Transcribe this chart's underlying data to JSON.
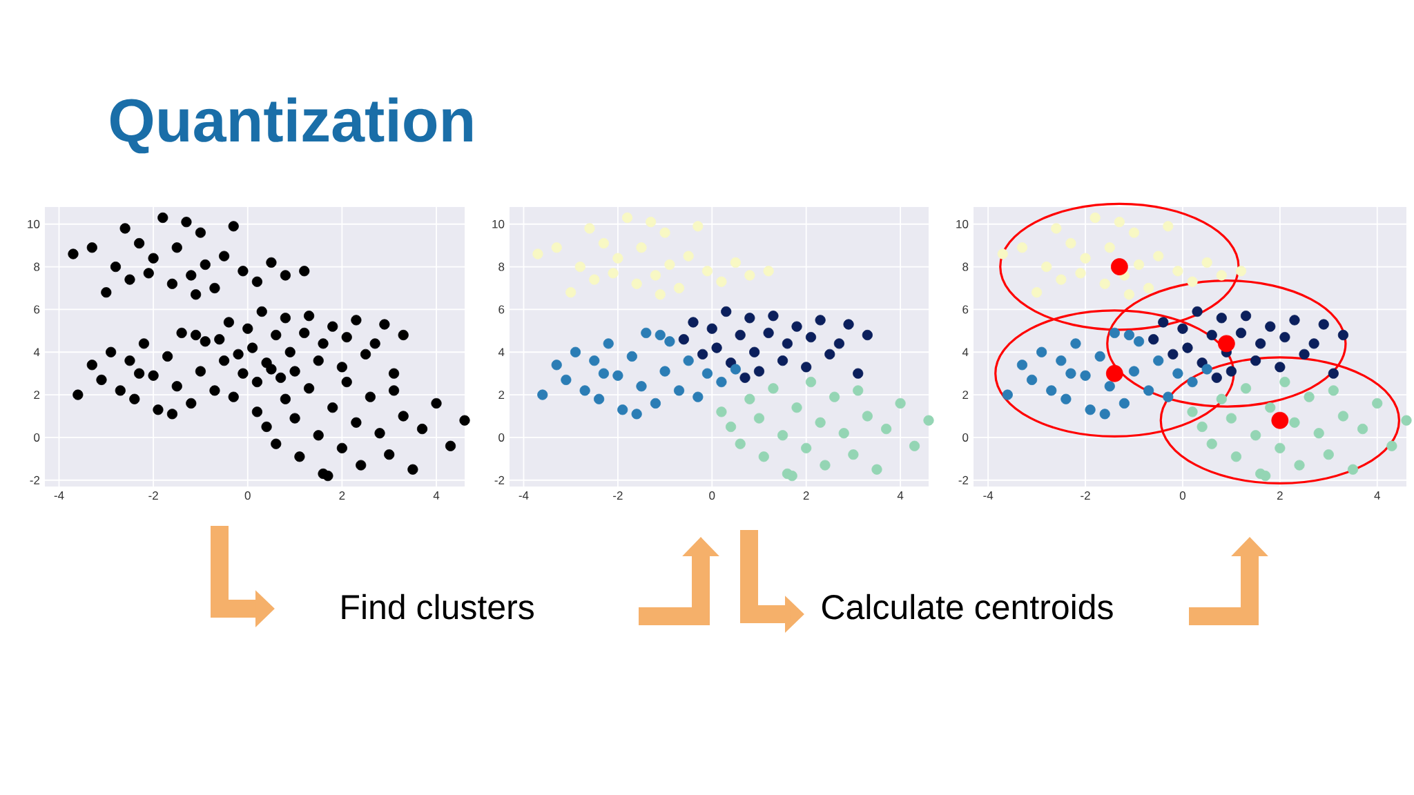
{
  "chart_data": [
    {
      "type": "scatter",
      "title": "Quantization",
      "annotations": [
        "Find clusters"
      ],
      "xlim": [
        -4.3,
        4.6
      ],
      "ylim": [
        -2.3,
        10.8
      ],
      "xticks": [
        -4,
        -2,
        0,
        2,
        4
      ],
      "yticks": [
        -2,
        0,
        2,
        4,
        6,
        8,
        10
      ],
      "grid": true,
      "marker": "circle",
      "series": [
        {
          "color": "#000000",
          "x": [
            -3.7,
            -3.3,
            -3.0,
            -2.8,
            -2.5,
            -2.3,
            -2.1,
            -2.0,
            -1.8,
            -1.6,
            -1.5,
            -1.3,
            -1.2,
            -1.0,
            -0.9,
            -0.7,
            -0.5,
            -0.3,
            -0.1,
            0.2,
            0.5,
            0.8,
            1.2,
            -1.1,
            -2.6,
            -0.6,
            -0.4,
            -0.2,
            0.0,
            0.1,
            0.3,
            0.4,
            0.6,
            0.8,
            0.9,
            1.0,
            1.2,
            1.3,
            1.5,
            1.6,
            1.8,
            2.0,
            2.1,
            2.3,
            2.5,
            2.7,
            2.9,
            3.1,
            3.3,
            0.7,
            -3.6,
            -3.3,
            -3.1,
            -2.9,
            -2.7,
            -2.5,
            -2.4,
            -2.2,
            -2.0,
            -1.9,
            -1.7,
            -1.5,
            -1.4,
            -1.2,
            -1.0,
            -0.9,
            -0.7,
            -0.5,
            -0.3,
            -0.1,
            0.2,
            0.5,
            -1.6,
            -2.3,
            -1.1,
            0.2,
            0.4,
            0.6,
            0.8,
            1.0,
            1.1,
            1.3,
            1.5,
            1.6,
            1.8,
            2.0,
            2.1,
            2.3,
            2.4,
            2.6,
            2.8,
            3.0,
            3.1,
            3.3,
            3.5,
            3.7,
            4.0,
            4.3,
            4.6,
            1.7
          ],
          "values": [
            8.6,
            8.9,
            6.8,
            8.0,
            7.4,
            9.1,
            7.7,
            8.4,
            10.3,
            7.2,
            8.9,
            10.1,
            7.6,
            9.6,
            8.1,
            7.0,
            8.5,
            9.9,
            7.8,
            7.3,
            8.2,
            7.6,
            7.8,
            6.7,
            9.8,
            4.6,
            5.4,
            3.9,
            5.1,
            4.2,
            5.9,
            3.5,
            4.8,
            5.6,
            4.0,
            3.1,
            4.9,
            5.7,
            3.6,
            4.4,
            5.2,
            3.3,
            4.7,
            5.5,
            3.9,
            4.4,
            5.3,
            3.0,
            4.8,
            2.8,
            2.0,
            3.4,
            2.7,
            4.0,
            2.2,
            3.6,
            1.8,
            4.4,
            2.9,
            1.3,
            3.8,
            2.4,
            4.9,
            1.6,
            3.1,
            4.5,
            2.2,
            3.6,
            1.9,
            3.0,
            2.6,
            3.2,
            1.1,
            3.0,
            4.8,
            1.2,
            0.5,
            -0.3,
            1.8,
            0.9,
            -0.9,
            2.3,
            0.1,
            -1.7,
            1.4,
            -0.5,
            2.6,
            0.7,
            -1.3,
            1.9,
            0.2,
            -0.8,
            2.2,
            1.0,
            -1.5,
            0.4,
            1.6,
            -0.4,
            0.8,
            -1.8
          ]
        }
      ]
    },
    {
      "type": "scatter",
      "annotations": [
        "Calculate centroids"
      ],
      "xlim": [
        -4.3,
        4.6
      ],
      "ylim": [
        -2.3,
        10.8
      ],
      "xticks": [
        -4,
        -2,
        0,
        2,
        4
      ],
      "yticks": [
        -2,
        0,
        2,
        4,
        6,
        8,
        10
      ],
      "grid": true,
      "marker": "circle",
      "series": [
        {
          "color": "#f8f8c4",
          "x": [
            -3.7,
            -3.3,
            -3.0,
            -2.8,
            -2.5,
            -2.3,
            -2.1,
            -2.0,
            -1.8,
            -1.6,
            -1.5,
            -1.3,
            -1.2,
            -1.0,
            -0.9,
            -0.7,
            -0.5,
            -0.3,
            -0.1,
            0.2,
            0.5,
            0.8,
            1.2,
            -1.1,
            -2.6
          ],
          "values": [
            8.6,
            8.9,
            6.8,
            8.0,
            7.4,
            9.1,
            7.7,
            8.4,
            10.3,
            7.2,
            8.9,
            10.1,
            7.6,
            9.6,
            8.1,
            7.0,
            8.5,
            9.9,
            7.8,
            7.3,
            8.2,
            7.6,
            7.8,
            6.7,
            9.8
          ]
        },
        {
          "color": "#0b1f5c",
          "x": [
            -0.6,
            -0.4,
            -0.2,
            0.0,
            0.1,
            0.3,
            0.4,
            0.6,
            0.8,
            0.9,
            1.0,
            1.2,
            1.3,
            1.5,
            1.6,
            1.8,
            2.0,
            2.1,
            2.3,
            2.5,
            2.7,
            2.9,
            3.1,
            3.3,
            0.7
          ],
          "values": [
            4.6,
            5.4,
            3.9,
            5.1,
            4.2,
            5.9,
            3.5,
            4.8,
            5.6,
            4.0,
            3.1,
            4.9,
            5.7,
            3.6,
            4.4,
            5.2,
            3.3,
            4.7,
            5.5,
            3.9,
            4.4,
            5.3,
            3.0,
            4.8,
            2.8
          ]
        },
        {
          "color": "#2b7db5",
          "x": [
            -3.6,
            -3.3,
            -3.1,
            -2.9,
            -2.7,
            -2.5,
            -2.4,
            -2.2,
            -2.0,
            -1.9,
            -1.7,
            -1.5,
            -1.4,
            -1.2,
            -1.0,
            -0.9,
            -0.7,
            -0.5,
            -0.3,
            -0.1,
            0.2,
            0.5,
            -1.6,
            -2.3,
            -1.1
          ],
          "values": [
            2.0,
            3.4,
            2.7,
            4.0,
            2.2,
            3.6,
            1.8,
            4.4,
            2.9,
            1.3,
            3.8,
            2.4,
            4.9,
            1.6,
            3.1,
            4.5,
            2.2,
            3.6,
            1.9,
            3.0,
            2.6,
            3.2,
            1.1,
            3.0,
            4.8
          ]
        },
        {
          "color": "#94d5b4",
          "x": [
            0.2,
            0.4,
            0.6,
            0.8,
            1.0,
            1.1,
            1.3,
            1.5,
            1.6,
            1.8,
            2.0,
            2.1,
            2.3,
            2.4,
            2.6,
            2.8,
            3.0,
            3.1,
            3.3,
            3.5,
            3.7,
            4.0,
            4.3,
            4.6,
            1.7
          ],
          "values": [
            1.2,
            0.5,
            -0.3,
            1.8,
            0.9,
            -0.9,
            2.3,
            0.1,
            -1.7,
            1.4,
            -0.5,
            2.6,
            0.7,
            -1.3,
            1.9,
            0.2,
            -0.8,
            2.2,
            1.0,
            -1.5,
            0.4,
            1.6,
            -0.4,
            0.8,
            -1.8
          ]
        }
      ]
    },
    {
      "type": "scatter",
      "xlim": [
        -4.3,
        4.6
      ],
      "ylim": [
        -2.3,
        10.8
      ],
      "xticks": [
        -4,
        -2,
        0,
        2,
        4
      ],
      "yticks": [
        -2,
        0,
        2,
        4,
        6,
        8,
        10
      ],
      "grid": true,
      "marker": "circle",
      "series": [
        {
          "color": "#f8f8c4",
          "x": [
            -3.7,
            -3.3,
            -3.0,
            -2.8,
            -2.5,
            -2.3,
            -2.1,
            -2.0,
            -1.8,
            -1.6,
            -1.5,
            -1.3,
            -1.2,
            -1.0,
            -0.9,
            -0.7,
            -0.5,
            -0.3,
            -0.1,
            0.2,
            0.5,
            0.8,
            1.2,
            -1.1,
            -2.6
          ],
          "values": [
            8.6,
            8.9,
            6.8,
            8.0,
            7.4,
            9.1,
            7.7,
            8.4,
            10.3,
            7.2,
            8.9,
            10.1,
            7.6,
            9.6,
            8.1,
            7.0,
            8.5,
            9.9,
            7.8,
            7.3,
            8.2,
            7.6,
            7.8,
            6.7,
            9.8
          ]
        },
        {
          "color": "#0b1f5c",
          "x": [
            -0.6,
            -0.4,
            -0.2,
            0.0,
            0.1,
            0.3,
            0.4,
            0.6,
            0.8,
            0.9,
            1.0,
            1.2,
            1.3,
            1.5,
            1.6,
            1.8,
            2.0,
            2.1,
            2.3,
            2.5,
            2.7,
            2.9,
            3.1,
            3.3,
            0.7
          ],
          "values": [
            4.6,
            5.4,
            3.9,
            5.1,
            4.2,
            5.9,
            3.5,
            4.8,
            5.6,
            4.0,
            3.1,
            4.9,
            5.7,
            3.6,
            4.4,
            5.2,
            3.3,
            4.7,
            5.5,
            3.9,
            4.4,
            5.3,
            3.0,
            4.8,
            2.8
          ]
        },
        {
          "color": "#2b7db5",
          "x": [
            -3.6,
            -3.3,
            -3.1,
            -2.9,
            -2.7,
            -2.5,
            -2.4,
            -2.2,
            -2.0,
            -1.9,
            -1.7,
            -1.5,
            -1.4,
            -1.2,
            -1.0,
            -0.9,
            -0.7,
            -0.5,
            -0.3,
            -0.1,
            0.2,
            0.5,
            -1.6,
            -2.3,
            -1.1
          ],
          "values": [
            2.0,
            3.4,
            2.7,
            4.0,
            2.2,
            3.6,
            1.8,
            4.4,
            2.9,
            1.3,
            3.8,
            2.4,
            4.9,
            1.6,
            3.1,
            4.5,
            2.2,
            3.6,
            1.9,
            3.0,
            2.6,
            3.2,
            1.1,
            3.0,
            4.8
          ]
        },
        {
          "color": "#94d5b4",
          "x": [
            0.2,
            0.4,
            0.6,
            0.8,
            1.0,
            1.1,
            1.3,
            1.5,
            1.6,
            1.8,
            2.0,
            2.1,
            2.3,
            2.4,
            2.6,
            2.8,
            3.0,
            3.1,
            3.3,
            3.5,
            3.7,
            4.0,
            4.3,
            4.6,
            1.7
          ],
          "values": [
            1.2,
            0.5,
            -0.3,
            1.8,
            0.9,
            -0.9,
            2.3,
            0.1,
            -1.7,
            1.4,
            -0.5,
            2.6,
            0.7,
            -1.3,
            1.9,
            0.2,
            -0.8,
            2.2,
            1.0,
            -1.5,
            0.4,
            1.6,
            -0.4,
            0.8,
            -1.8
          ]
        },
        {
          "color": "#ff0000",
          "x": [
            -1.3,
            0.9,
            -1.4,
            2.0
          ],
          "values": [
            8.0,
            4.4,
            3.0,
            0.8
          ]
        }
      ]
    }
  ]
}
